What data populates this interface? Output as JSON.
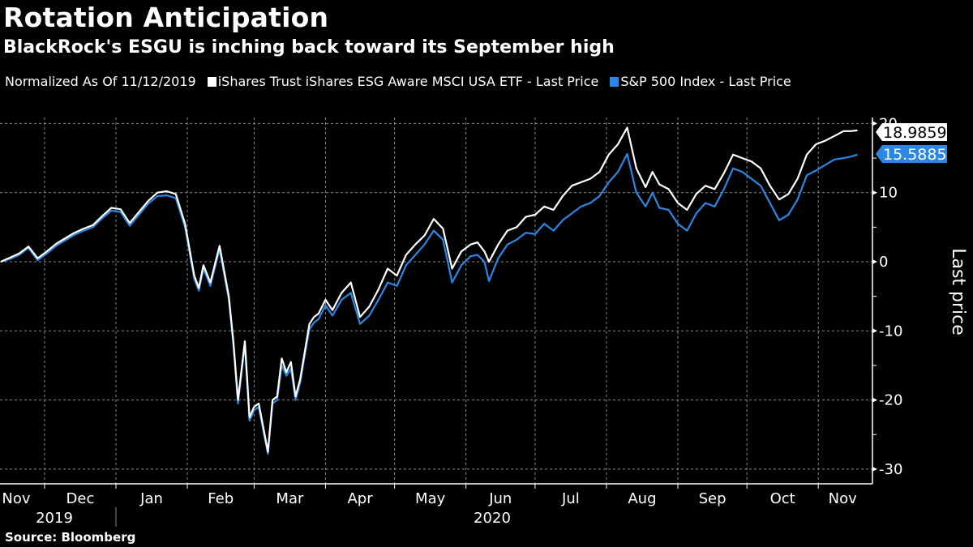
{
  "title": "Rotation Anticipation",
  "subtitle": "BlackRock's ESGU is inching back toward its September high",
  "legend": {
    "note": "Normalized As Of 11/12/2019",
    "items": [
      {
        "label": "iShares Trust iShares ESG Aware MSCI USA ETF - Last Price",
        "color": "#ffffff"
      },
      {
        "label": "S&P 500 Index - Last Price",
        "color": "#2b87e3"
      }
    ]
  },
  "source": "Source: Bloomberg",
  "chart_data": {
    "type": "line",
    "title": "Rotation Anticipation",
    "subtitle": "BlackRock's ESGU is inching back toward its September high",
    "xlabel": "",
    "ylabel": "Last price",
    "ylim": [
      -32,
      25
    ],
    "yticks": [
      20,
      10,
      0,
      -10,
      -20,
      -30
    ],
    "ytick_labels": [
      "20",
      "10",
      "0",
      "-10",
      "-20",
      "-30"
    ],
    "grid": true,
    "legend_position": "top-left",
    "x_month_labels": [
      "Nov",
      "Dec",
      "Jan",
      "Feb",
      "Mar",
      "Apr",
      "May",
      "Jun",
      "Jul",
      "Aug",
      "Sep",
      "Oct",
      "Nov"
    ],
    "x_month_start_days": [
      -12,
      19,
      50,
      81,
      110,
      141,
      171,
      202,
      232,
      263,
      294,
      324,
      355
    ],
    "x_year_labels": [
      {
        "label": "2019",
        "day": 9
      },
      {
        "label": "2020",
        "day": 215
      }
    ],
    "x_unit": "days since 2019-11-12",
    "last_values": [
      {
        "series": "iShares Trust iShares ESG Aware MSCI USA ETF - Last Price",
        "value": "18.9859",
        "color": "#ffffff",
        "text_color": "#000000"
      },
      {
        "series": "S&P 500 Index - Last Price",
        "value": "15.5885",
        "color": "#2b87e3",
        "text_color": "#ffffff"
      }
    ],
    "x": [
      0,
      4,
      8,
      12,
      16,
      20,
      24,
      28,
      32,
      36,
      40,
      44,
      48,
      52,
      56,
      60,
      64,
      68,
      72,
      76,
      80,
      84,
      86,
      88,
      91,
      95,
      99,
      101,
      103,
      106,
      108,
      110,
      112,
      114,
      116,
      118,
      120,
      122,
      124,
      126,
      128,
      130,
      132,
      134,
      136,
      138,
      141,
      144,
      148,
      152,
      156,
      160,
      164,
      168,
      172,
      176,
      180,
      184,
      188,
      192,
      196,
      200,
      204,
      207,
      210,
      212,
      216,
      220,
      224,
      228,
      232,
      236,
      240,
      244,
      248,
      252,
      256,
      260,
      264,
      268,
      272,
      276,
      280,
      283,
      286,
      290,
      294,
      298,
      302,
      306,
      310,
      314,
      318,
      322,
      326,
      330,
      334,
      338,
      342,
      346,
      350,
      354,
      358,
      362,
      366,
      369,
      372
    ],
    "series": [
      {
        "name": "iShares Trust iShares ESG Aware MSCI USA ETF - Last Price",
        "color": "#ffffff",
        "values": [
          0,
          0.6,
          1.2,
          2.2,
          0.5,
          1.5,
          2.6,
          3.4,
          4.2,
          4.8,
          5.3,
          6.6,
          7.8,
          7.6,
          5.6,
          7.2,
          8.8,
          10.0,
          10.2,
          9.8,
          5.5,
          -2.0,
          -3.8,
          -0.5,
          -3.0,
          2.3,
          -5.0,
          -11.5,
          -20.0,
          -11.5,
          -22.5,
          -21.0,
          -20.5,
          -24.0,
          -27.5,
          -20.0,
          -19.5,
          -14.0,
          -16.0,
          -14.5,
          -19.5,
          -17.0,
          -13.0,
          -9.0,
          -8.0,
          -7.5,
          -5.5,
          -7.0,
          -4.5,
          -3.0,
          -8.0,
          -6.5,
          -4.0,
          -1.0,
          -2.0,
          1.0,
          2.5,
          3.8,
          6.2,
          4.8,
          -1.0,
          1.5,
          2.5,
          2.8,
          1.5,
          0.0,
          2.5,
          4.5,
          5.0,
          6.5,
          6.8,
          8.0,
          7.5,
          9.5,
          11.0,
          11.5,
          12.0,
          13.0,
          15.5,
          17.0,
          19.4,
          13.5,
          10.8,
          13.0,
          11.2,
          10.5,
          8.5,
          7.5,
          9.8,
          11.0,
          10.5,
          12.8,
          15.5,
          15.0,
          14.5,
          13.5,
          11.0,
          9.0,
          9.8,
          12.0,
          15.5,
          17.0,
          17.5,
          18.2,
          18.9,
          18.9,
          19.0
        ]
      },
      {
        "name": "S&P 500 Index - Last Price",
        "color": "#2b87e3",
        "values": [
          0,
          0.4,
          1.0,
          2.0,
          0.2,
          1.2,
          2.3,
          3.1,
          3.9,
          4.5,
          5.0,
          6.3,
          7.4,
          7.2,
          5.2,
          6.8,
          8.4,
          9.5,
          9.6,
          9.2,
          5.0,
          -2.5,
          -4.2,
          -1.0,
          -3.5,
          1.8,
          -5.5,
          -12.0,
          -20.5,
          -12.0,
          -23.0,
          -21.5,
          -21.0,
          -24.5,
          -27.8,
          -20.5,
          -20.0,
          -15.0,
          -16.5,
          -15.5,
          -20.0,
          -17.5,
          -13.5,
          -9.8,
          -8.8,
          -8.3,
          -6.3,
          -7.8,
          -5.5,
          -4.5,
          -9.0,
          -7.8,
          -5.5,
          -3.0,
          -3.5,
          -0.5,
          1.0,
          2.5,
          4.5,
          3.2,
          -3.0,
          -0.5,
          0.8,
          1.0,
          0.0,
          -2.8,
          0.5,
          2.5,
          3.2,
          4.2,
          4.0,
          5.5,
          4.5,
          6.0,
          7.0,
          8.0,
          8.5,
          9.5,
          11.5,
          13.0,
          15.6,
          10.0,
          8.0,
          10.0,
          7.8,
          7.5,
          5.5,
          4.5,
          7.0,
          8.5,
          8.0,
          10.5,
          13.5,
          13.0,
          12.0,
          11.0,
          8.5,
          6.0,
          6.8,
          9.0,
          12.5,
          13.2,
          14.0,
          14.8,
          15.0,
          15.2,
          15.5
        ]
      }
    ]
  }
}
